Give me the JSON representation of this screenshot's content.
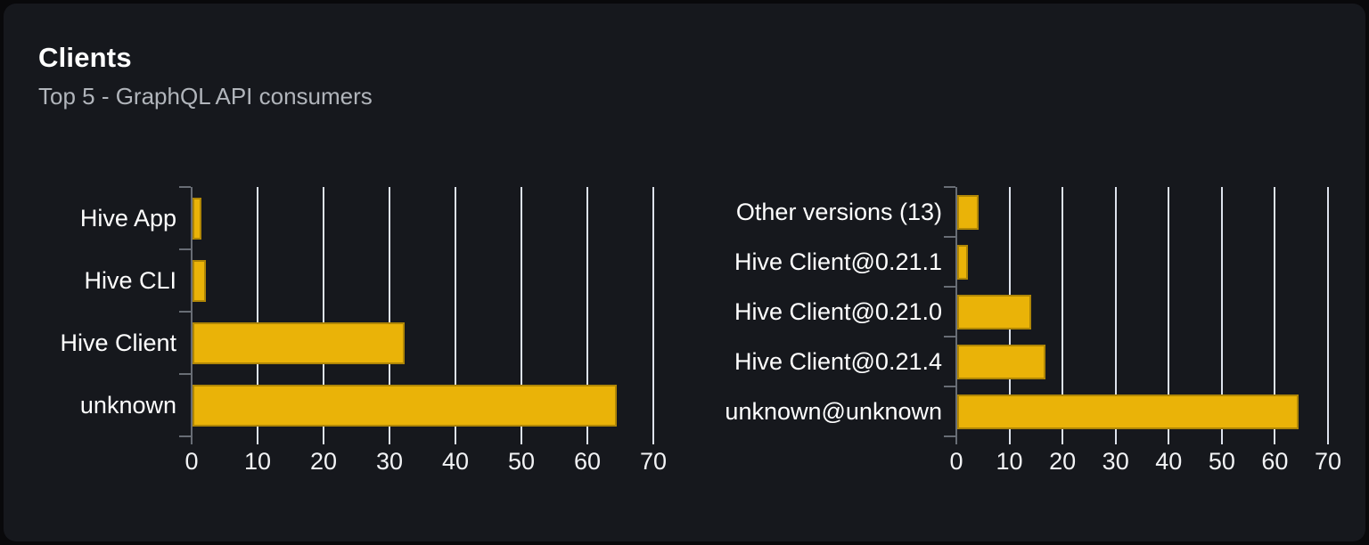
{
  "card": {
    "title": "Clients",
    "subtitle": "Top 5 - GraphQL API consumers"
  },
  "colors": {
    "page_bg": "#09090b",
    "card_bg": "#16181d",
    "bar": "#eab308",
    "grid": "#dde2ec",
    "axis": "#686d75",
    "text": "#ffffff",
    "subtitle_text": "#b1b5bb"
  },
  "chart_data": [
    {
      "type": "bar",
      "name": "clients",
      "orientation": "horizontal",
      "title": "",
      "xlabel": "",
      "ylabel": "",
      "categories": [
        "Hive App",
        "Hive CLI",
        "Hive Client",
        "unknown"
      ],
      "values": [
        1.3,
        2.0,
        32.2,
        64.3
      ],
      "xlim": [
        0,
        70
      ],
      "xticks": [
        0,
        10,
        20,
        30,
        40,
        50,
        60,
        70
      ],
      "grid": true,
      "legend": false,
      "bar_color": "#eab308"
    },
    {
      "type": "bar",
      "name": "client-versions",
      "orientation": "horizontal",
      "title": "",
      "xlabel": "",
      "ylabel": "",
      "categories": [
        "Other versions (13)",
        "Hive Client@0.21.1",
        "Hive Client@0.21.0",
        "Hive Client@0.21.4",
        "unknown@unknown"
      ],
      "values": [
        4.0,
        2.0,
        13.9,
        16.6,
        64.3
      ],
      "xlim": [
        0,
        70
      ],
      "xticks": [
        0,
        10,
        20,
        30,
        40,
        50,
        60,
        70
      ],
      "grid": true,
      "legend": false,
      "bar_color": "#eab308"
    }
  ]
}
